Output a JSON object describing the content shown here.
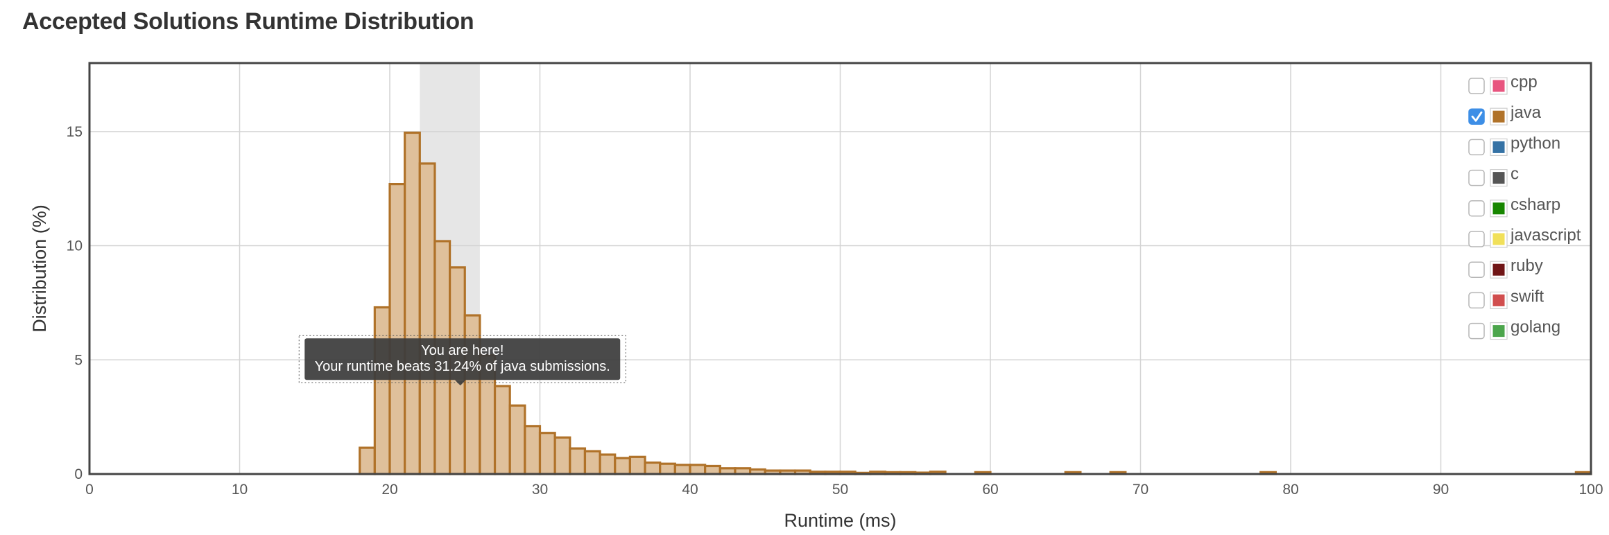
{
  "page": {
    "title": "Accepted Solutions Runtime Distribution"
  },
  "chart_data": {
    "type": "bar",
    "title": "Accepted Solutions Runtime Distribution",
    "xlabel": "Runtime (ms)",
    "ylabel": "Distribution (%)",
    "xlim": [
      0,
      100
    ],
    "ylim": [
      0,
      18
    ],
    "xticks": [
      0,
      10,
      20,
      30,
      40,
      50,
      60,
      70,
      80,
      90,
      100
    ],
    "yticks": [
      0,
      5,
      10,
      15
    ],
    "bin_width": 1,
    "grid": true,
    "highlight_range": [
      22,
      26
    ],
    "legend_position": "top-right",
    "legend": [
      {
        "name": "cpp",
        "color": "#e8557f",
        "checked": false
      },
      {
        "name": "java",
        "color": "#b07229",
        "checked": true
      },
      {
        "name": "python",
        "color": "#3572a5",
        "checked": false
      },
      {
        "name": "c",
        "color": "#555555",
        "checked": false
      },
      {
        "name": "csharp",
        "color": "#178600",
        "checked": false
      },
      {
        "name": "javascript",
        "color": "#f1e05a",
        "checked": false
      },
      {
        "name": "ruby",
        "color": "#701516",
        "checked": false
      },
      {
        "name": "swift",
        "color": "#d14e4e",
        "checked": false
      },
      {
        "name": "golang",
        "color": "#4ca64c",
        "checked": false
      }
    ],
    "series": [
      {
        "name": "java",
        "color": "#b07229",
        "fill": "#dfc09b",
        "x": [
          18,
          19,
          20,
          21,
          22,
          23,
          24,
          25,
          26,
          27,
          28,
          29,
          30,
          31,
          32,
          33,
          34,
          35,
          36,
          37,
          38,
          39,
          40,
          41,
          42,
          43,
          44,
          45,
          46,
          47,
          48,
          49,
          50,
          51,
          52,
          53,
          54,
          55,
          56,
          59,
          65,
          68,
          78,
          99
        ],
        "values": [
          1.15,
          7.3,
          12.7,
          14.95,
          13.6,
          10.2,
          9.05,
          6.95,
          5.2,
          3.85,
          3.0,
          2.1,
          1.8,
          1.6,
          1.12,
          1.0,
          0.85,
          0.7,
          0.75,
          0.5,
          0.45,
          0.4,
          0.4,
          0.35,
          0.25,
          0.25,
          0.2,
          0.15,
          0.15,
          0.15,
          0.1,
          0.1,
          0.1,
          0.05,
          0.1,
          0.08,
          0.08,
          0.06,
          0.1,
          0.08,
          0.08,
          0.08,
          0.08,
          0.08
        ]
      }
    ],
    "annotation": {
      "x": 24.7,
      "y": 4.0,
      "line1": "You are here!",
      "line2": "Your runtime beats 31.24% of java submissions."
    }
  }
}
